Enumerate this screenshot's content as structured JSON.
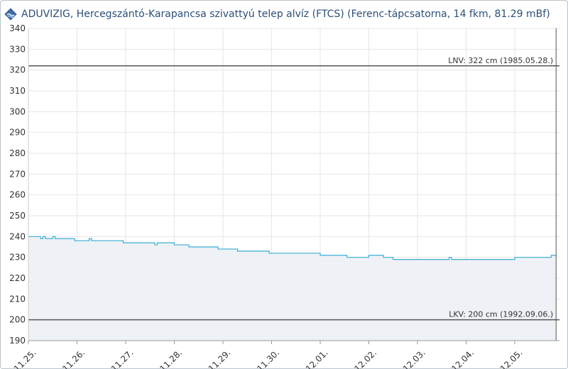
{
  "header": {
    "title": "ADUVIZIG, Hercegszántó-Karapancsa szivattyú telep alvíz (FTCS) (Ferenc-tápcsatorna, 14 fkm, 81.29 mBf)",
    "logo_icon": "aduvizig-logo-icon"
  },
  "colors": {
    "series": "#38aed6",
    "area_fill": "#eef1f5",
    "reference_line": "#555555",
    "grid": "#e6e6e6",
    "title": "#2c4f78"
  },
  "chart_data": {
    "type": "area",
    "title": "ADUVIZIG, Hercegszántó-Karapancsa szivattyú telep alvíz (FTCS) (Ferenc-tápcsatorna, 14 fkm, 81.29 mBf)",
    "xlabel": "",
    "ylabel": "",
    "ylim": [
      190,
      340
    ],
    "xlim": [
      0,
      10.85
    ],
    "y_ticks": [
      190,
      200,
      210,
      220,
      230,
      240,
      250,
      260,
      270,
      280,
      290,
      300,
      310,
      320,
      330,
      340
    ],
    "x_ticks": [
      {
        "label": "11.25.",
        "x": 0
      },
      {
        "label": "11.26.",
        "x": 1
      },
      {
        "label": "11.27.",
        "x": 2
      },
      {
        "label": "11.28.",
        "x": 3
      },
      {
        "label": "11.29.",
        "x": 4
      },
      {
        "label": "11.30.",
        "x": 5
      },
      {
        "label": "12.01.",
        "x": 6
      },
      {
        "label": "12.02.",
        "x": 7
      },
      {
        "label": "12.03.",
        "x": 8
      },
      {
        "label": "12.04.",
        "x": 9
      },
      {
        "label": "12.05.",
        "x": 10
      }
    ],
    "grid": true,
    "series": [
      {
        "x": [
          0,
          0.2,
          0.25,
          0.3,
          0.35,
          0.45,
          0.5,
          0.55,
          0.9,
          0.95,
          1.2,
          1.25,
          1.3,
          1.5,
          1.9,
          1.95,
          2.4,
          2.6,
          2.65,
          3.0,
          3.3,
          3.5,
          3.9,
          4.2,
          4.25,
          4.3,
          4.35,
          4.5,
          4.8,
          4.95,
          5.5,
          6.0,
          6.2,
          6.45,
          6.5,
          6.55,
          6.6,
          6.65,
          6.75,
          7.0,
          7.3,
          7.5,
          8.0,
          8.5,
          8.6,
          8.65,
          8.7,
          9.0,
          9.3,
          9.5,
          9.7,
          10.0,
          10.35,
          10.4,
          10.75
        ],
        "values": [
          240,
          240,
          239,
          240,
          239,
          239,
          240,
          239,
          239,
          238,
          238,
          239,
          238,
          238,
          238,
          237,
          237,
          236,
          237,
          236,
          235,
          235,
          234,
          234,
          234,
          233,
          233,
          233,
          233,
          232,
          232,
          231,
          231,
          231,
          231,
          230,
          230,
          230,
          230,
          231,
          230,
          229,
          229,
          229,
          229,
          230,
          229,
          229,
          229,
          229,
          229,
          230,
          230,
          230,
          231
        ]
      }
    ],
    "reference_lines": [
      {
        "label": "LNV: 322 cm (1985.05.28.)",
        "value": 322
      },
      {
        "label": "LKV: 200 cm (1992.09.06.)",
        "value": 200
      }
    ],
    "current_time_marker_x": 10.85
  }
}
